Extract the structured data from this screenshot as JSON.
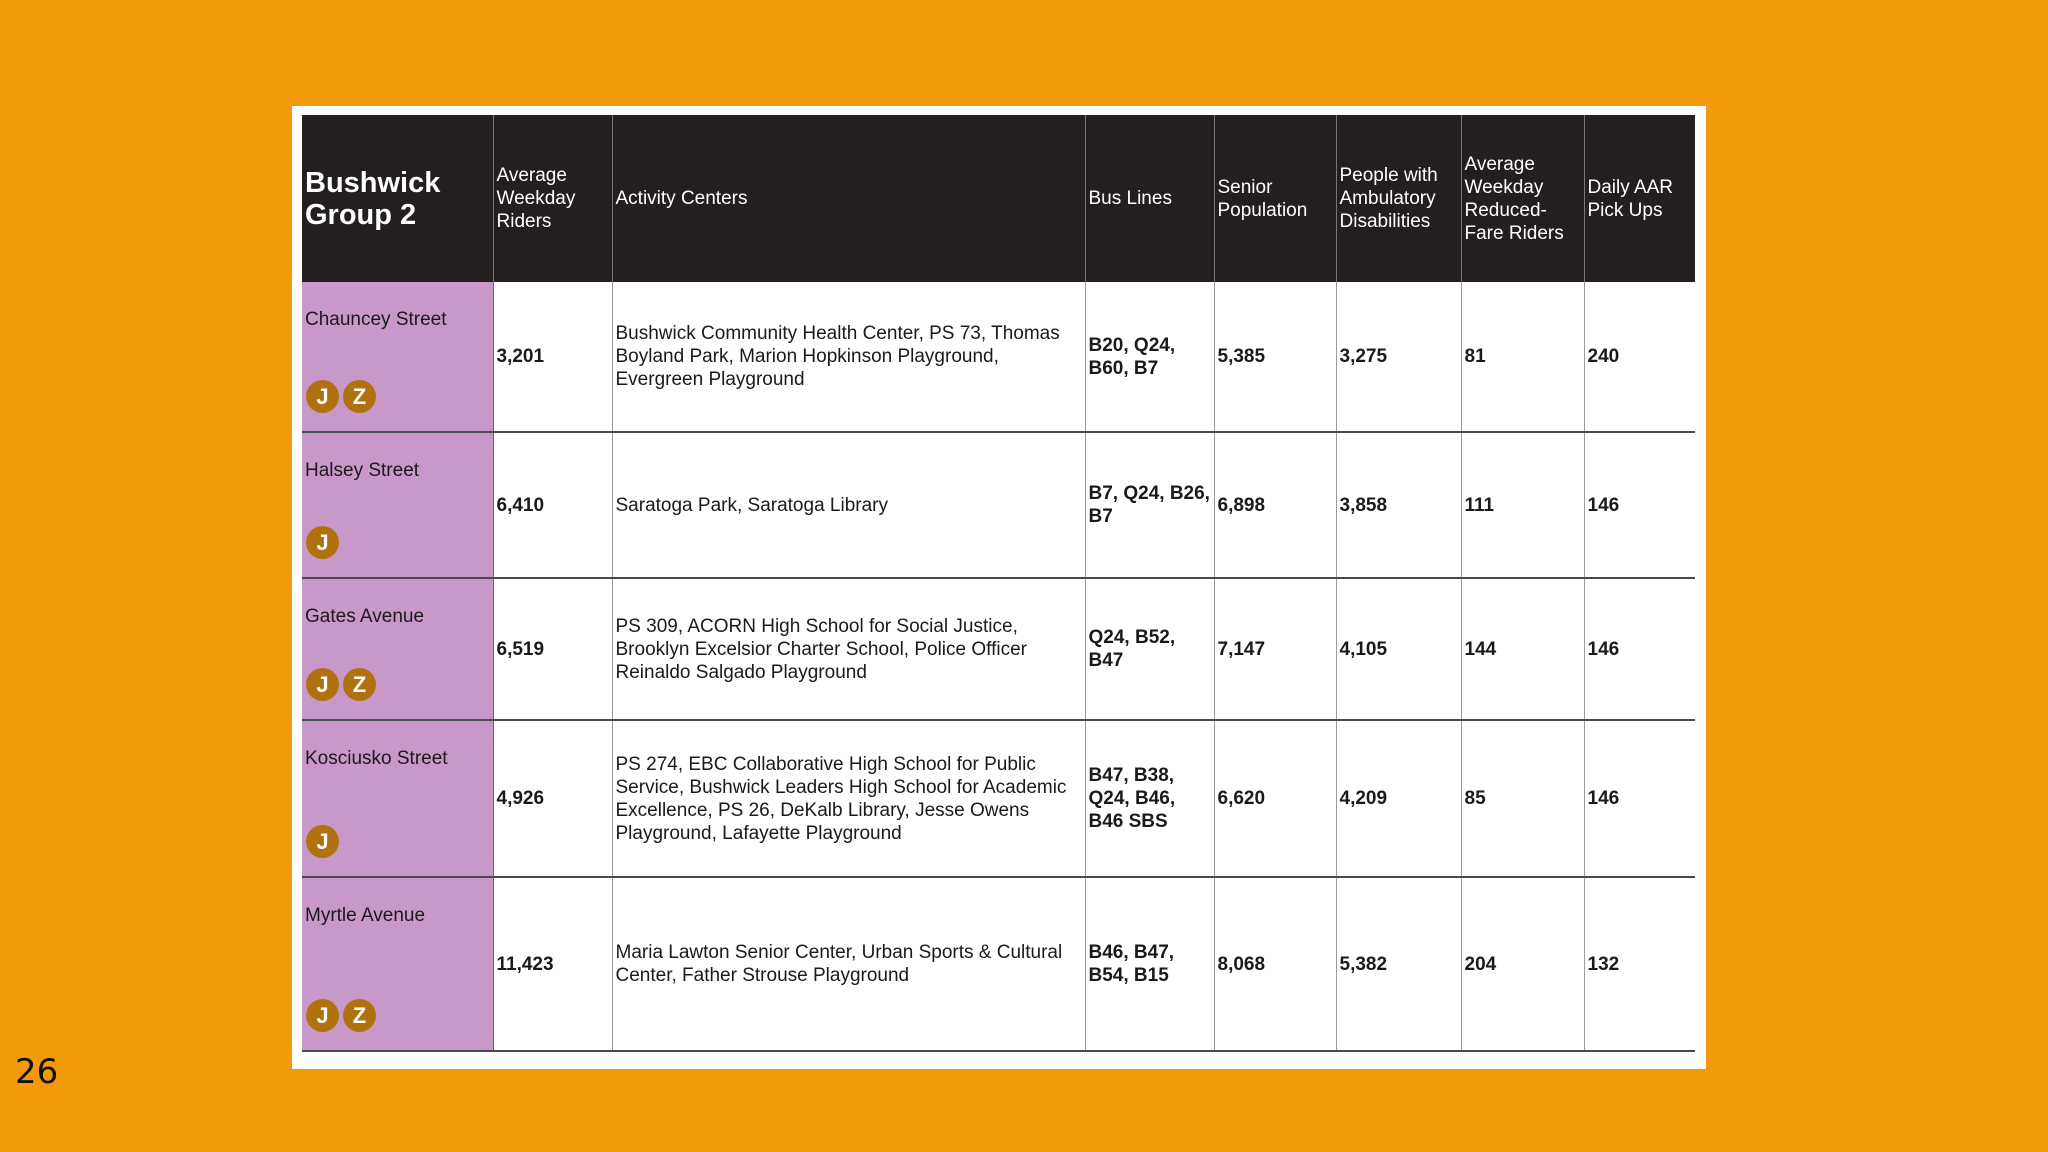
{
  "page_number": "26",
  "colors": {
    "background": "#F39A0A",
    "header": "#231F20",
    "station_cell": "#C898C8",
    "route_bullet": "#B0720E"
  },
  "table": {
    "headers": {
      "group": "Bushwick Group 2",
      "riders": "Average Weekday Riders",
      "activity": "Activity Centers",
      "bus": "Bus Lines",
      "senior": "Senior Population",
      "disab": "People with Ambulatory Disabilities",
      "reduced": "Average Weekday Reduced-Fare Riders",
      "aar": "Daily AAR Pick Ups"
    },
    "rows": [
      {
        "station": "Chauncey Street",
        "routes": [
          "J",
          "Z"
        ],
        "riders": "3,201",
        "activity": "Bushwick Community Health Center, PS 73, Thomas Boyland Park, Marion Hopkinson Playground, Evergreen Playground",
        "bus": "B20, Q24, B60, B7",
        "senior": "5,385",
        "disab": "3,275",
        "reduced": "81",
        "aar": "240"
      },
      {
        "station": "Halsey Street",
        "routes": [
          "J"
        ],
        "riders": "6,410",
        "activity": "Saratoga Park, Saratoga Library",
        "bus": "B7, Q24, B26, B7",
        "senior": "6,898",
        "disab": "3,858",
        "reduced": "111",
        "aar": "146"
      },
      {
        "station": "Gates Avenue",
        "routes": [
          "J",
          "Z"
        ],
        "riders": "6,519",
        "activity": "PS 309, ACORN High School for Social Justice, Brooklyn Excelsior Charter School, Police Officer Reinaldo Salgado Playground",
        "bus": "Q24, B52, B47",
        "senior": "7,147",
        "disab": "4,105",
        "reduced": "144",
        "aar": "146"
      },
      {
        "station": "Kosciusko Street",
        "routes": [
          "J"
        ],
        "riders": "4,926",
        "activity": "PS 274, EBC Collaborative High School for Public Service, Bushwick Leaders High School for Academic Excellence, PS 26, DeKalb Library, Jesse Owens Playground, Lafayette Playground",
        "bus": "B47, B38, Q24, B46, B46 SBS",
        "senior": "6,620",
        "disab": "4,209",
        "reduced": "85",
        "aar": "146"
      },
      {
        "station": "Myrtle Avenue",
        "routes": [
          "J",
          "Z"
        ],
        "riders": "11,423",
        "activity": "Maria Lawton Senior Center, Urban Sports & Cultural Center, Father Strouse Playground",
        "bus": "B46, B47, B54, B15",
        "senior": "8,068",
        "disab": "5,382",
        "reduced": "204",
        "aar": "132"
      }
    ]
  }
}
